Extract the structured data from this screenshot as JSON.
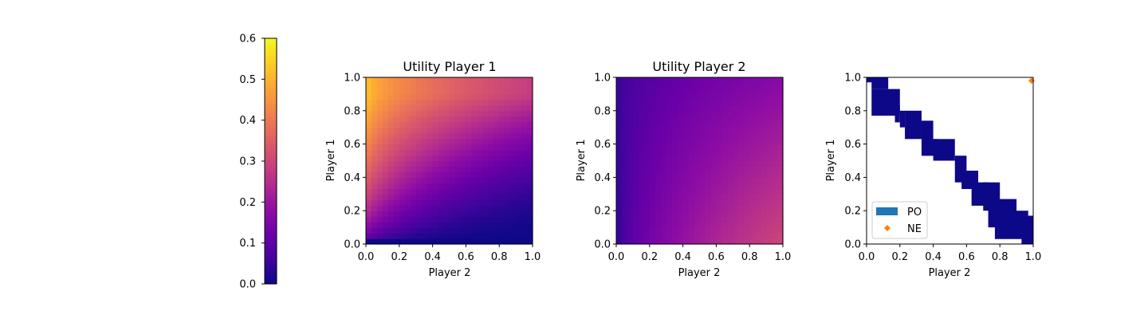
{
  "colors": {
    "colormap": "plasma",
    "po_region": "#0d0887",
    "po_legend": "#1f77b4",
    "ne_marker": "#ff7f0e",
    "axis": "#000000"
  },
  "colorbar": {
    "ticks": [
      "0.0",
      "0.1",
      "0.2",
      "0.3",
      "0.4",
      "0.5",
      "0.6"
    ],
    "range": [
      0,
      0.6
    ]
  },
  "chart_data": [
    {
      "type": "heatmap",
      "title": "Utility Player 1",
      "xlabel": "Player 2",
      "ylabel": "Player 1",
      "xlim": [
        0,
        1
      ],
      "ylim": [
        0,
        1
      ],
      "xticks": [
        "0.0",
        "0.2",
        "0.4",
        "0.6",
        "0.8",
        "1.0"
      ],
      "yticks": [
        "0.0",
        "0.2",
        "0.4",
        "0.6",
        "0.8",
        "1.0"
      ],
      "value_range": [
        0,
        0.6
      ],
      "approximate_corner_values": {
        "x0_y0": 0.0,
        "x1_y0": 0.0,
        "x0_y1": 0.55,
        "x1_y1": 0.28
      }
    },
    {
      "type": "heatmap",
      "title": "Utility Player 2",
      "xlabel": "Player 2",
      "ylabel": "Player 1",
      "xlim": [
        0,
        1
      ],
      "ylim": [
        0,
        1
      ],
      "xticks": [
        "0.0",
        "0.2",
        "0.4",
        "0.6",
        "0.8",
        "1.0"
      ],
      "yticks": [
        "0.0",
        "0.2",
        "0.4",
        "0.6",
        "0.8",
        "1.0"
      ],
      "value_range": [
        0,
        0.6
      ],
      "approximate_corner_values": {
        "x0_y0": 0.02,
        "x1_y0": 0.3,
        "x0_y1": 0.04,
        "x1_y1": 0.15
      }
    },
    {
      "type": "scatter",
      "title": "",
      "xlabel": "Player 2",
      "ylabel": "Player 1",
      "xlim": [
        0,
        1
      ],
      "ylim": [
        0,
        1
      ],
      "xticks": [
        "0.0",
        "0.2",
        "0.4",
        "0.6",
        "0.8",
        "1.0"
      ],
      "yticks": [
        "0.0",
        "0.2",
        "0.4",
        "0.6",
        "0.8",
        "1.0"
      ],
      "legend": {
        "location": "lower-left",
        "entries": [
          "PO",
          "NE"
        ]
      },
      "series": [
        {
          "name": "PO",
          "kind": "region",
          "cells": [
            [
              0.0,
              0.97,
              0.04,
              0.03
            ],
            [
              0.03,
              0.93,
              0.1,
              0.07
            ],
            [
              0.03,
              0.77,
              0.17,
              0.16
            ],
            [
              0.17,
              0.73,
              0.03,
              0.1
            ],
            [
              0.2,
              0.7,
              0.03,
              0.1
            ],
            [
              0.23,
              0.63,
              0.1,
              0.17
            ],
            [
              0.33,
              0.53,
              0.07,
              0.21
            ],
            [
              0.33,
              0.53,
              0.1,
              0.1
            ],
            [
              0.4,
              0.5,
              0.13,
              0.13
            ],
            [
              0.53,
              0.37,
              0.07,
              0.16
            ],
            [
              0.57,
              0.33,
              0.1,
              0.11
            ],
            [
              0.63,
              0.23,
              0.1,
              0.14
            ],
            [
              0.7,
              0.2,
              0.1,
              0.17
            ],
            [
              0.73,
              0.1,
              0.17,
              0.17
            ],
            [
              0.77,
              0.03,
              0.2,
              0.17
            ],
            [
              0.93,
              0.0,
              0.07,
              0.17
            ]
          ]
        },
        {
          "name": "NE",
          "kind": "point",
          "x": [
            0.99
          ],
          "y": [
            0.98
          ]
        }
      ]
    }
  ]
}
